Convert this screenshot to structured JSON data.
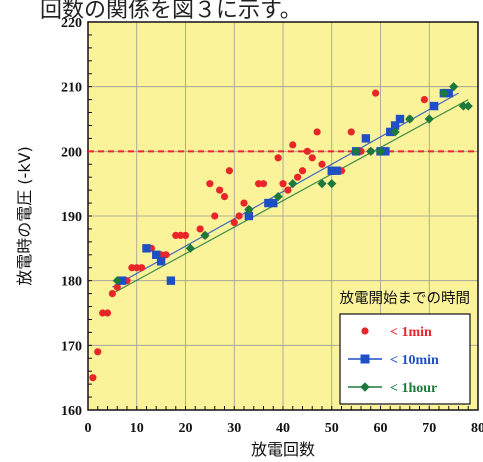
{
  "header": {
    "partial_text": "回数の関係を図３に示す。"
  },
  "chart_data": {
    "type": "scatter",
    "xlabel": "放電回数",
    "ylabel": "放電時の電圧 (-kV)",
    "xlim": [
      0,
      80
    ],
    "ylim": [
      160,
      220
    ],
    "xticks": [
      0,
      10,
      20,
      30,
      40,
      50,
      60,
      70,
      80
    ],
    "yticks": [
      160,
      170,
      180,
      190,
      200,
      210,
      220
    ],
    "grid": true,
    "reference_line": {
      "y": 200,
      "color": "#e8262a",
      "style": "dashed"
    },
    "legend_title": "放電開始までの時間",
    "legend_position": "bottom-right",
    "series": [
      {
        "name": "< 1min",
        "marker": "circle",
        "color": "#e8262a",
        "points": [
          [
            1,
            165
          ],
          [
            2,
            169
          ],
          [
            3,
            175
          ],
          [
            4,
            175
          ],
          [
            5,
            178
          ],
          [
            6,
            179
          ],
          [
            7,
            180
          ],
          [
            8,
            180
          ],
          [
            9,
            182
          ],
          [
            10,
            182
          ],
          [
            11,
            182
          ],
          [
            12,
            185
          ],
          [
            13,
            185
          ],
          [
            14,
            184
          ],
          [
            15,
            184
          ],
          [
            16,
            184
          ],
          [
            18,
            187
          ],
          [
            19,
            187
          ],
          [
            20,
            187
          ],
          [
            23,
            188
          ],
          [
            24,
            187
          ],
          [
            25,
            195
          ],
          [
            26,
            190
          ],
          [
            27,
            194
          ],
          [
            28,
            193
          ],
          [
            29,
            197
          ],
          [
            30,
            189
          ],
          [
            31,
            190
          ],
          [
            32,
            192
          ],
          [
            33,
            191
          ],
          [
            35,
            195
          ],
          [
            36,
            195
          ],
          [
            38,
            192
          ],
          [
            39,
            199
          ],
          [
            40,
            195
          ],
          [
            41,
            194
          ],
          [
            42,
            201
          ],
          [
            43,
            196
          ],
          [
            44,
            197
          ],
          [
            45,
            200
          ],
          [
            46,
            199
          ],
          [
            47,
            203
          ],
          [
            48,
            198
          ],
          [
            52,
            197
          ],
          [
            54,
            203
          ],
          [
            56,
            200
          ],
          [
            58,
            200
          ],
          [
            59,
            209
          ],
          [
            60,
            200
          ],
          [
            64,
            205
          ],
          [
            66,
            205
          ],
          [
            69,
            208
          ]
        ]
      },
      {
        "name": "< 10min",
        "marker": "square",
        "color": "#1f4fc4",
        "points": [
          [
            7,
            180
          ],
          [
            12,
            185
          ],
          [
            14,
            184
          ],
          [
            15,
            183
          ],
          [
            17,
            180
          ],
          [
            33,
            190
          ],
          [
            37,
            192
          ],
          [
            38,
            192
          ],
          [
            50,
            197
          ],
          [
            51,
            197
          ],
          [
            55,
            200
          ],
          [
            57,
            202
          ],
          [
            60,
            200
          ],
          [
            61,
            200
          ],
          [
            62,
            203
          ],
          [
            63,
            204
          ],
          [
            64,
            205
          ],
          [
            71,
            207
          ],
          [
            73,
            209
          ],
          [
            74,
            209
          ]
        ],
        "trend": [
          [
            5,
            179
          ],
          [
            76,
            209
          ]
        ]
      },
      {
        "name": "< 1hour",
        "marker": "diamond",
        "color": "#1b7a3a",
        "points": [
          [
            6,
            180
          ],
          [
            21,
            185
          ],
          [
            24,
            187
          ],
          [
            33,
            191
          ],
          [
            39,
            193
          ],
          [
            42,
            195
          ],
          [
            48,
            195
          ],
          [
            50,
            195
          ],
          [
            55,
            200
          ],
          [
            58,
            200
          ],
          [
            60,
            200
          ],
          [
            63,
            203
          ],
          [
            66,
            205
          ],
          [
            70,
            205
          ],
          [
            73,
            209
          ],
          [
            75,
            210
          ],
          [
            77,
            207
          ],
          [
            78,
            207
          ]
        ],
        "trend": [
          [
            5,
            178
          ],
          [
            78,
            208
          ]
        ]
      }
    ]
  }
}
